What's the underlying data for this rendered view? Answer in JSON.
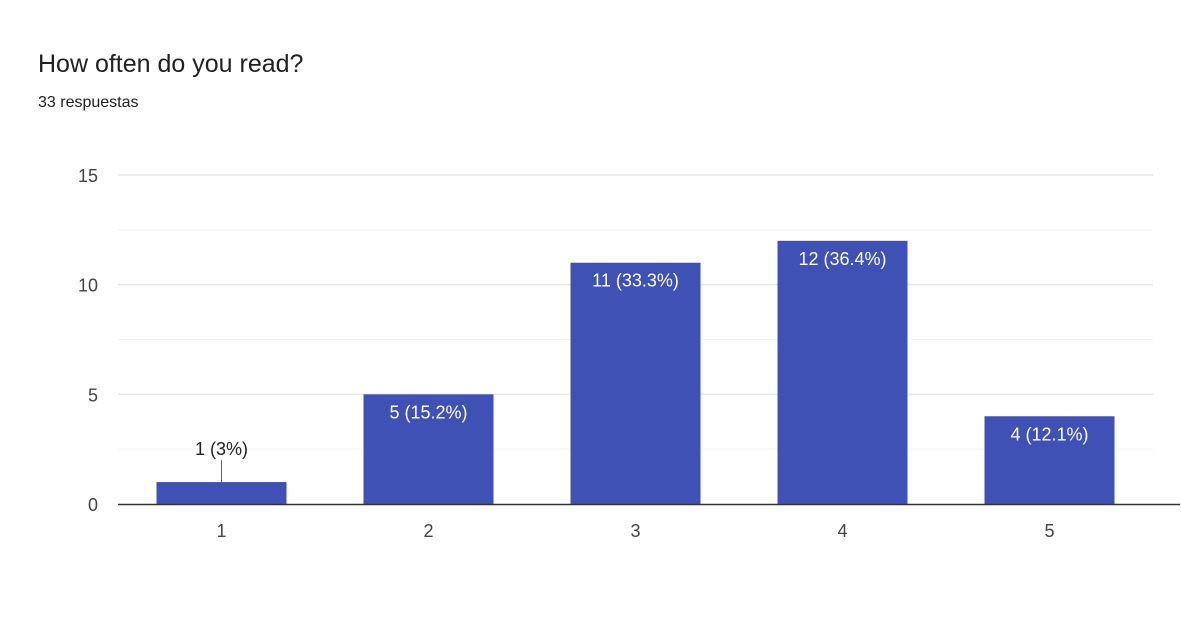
{
  "question": {
    "title": "How often do you read?",
    "responses": "33 respuestas"
  },
  "colors": {
    "bar": "#3f51b5",
    "gridline": "#ebebeb",
    "axis": "#333333",
    "label_inside": "#ffffff",
    "label_outside": "#222222"
  },
  "chart_data": {
    "type": "bar",
    "title": "",
    "xlabel": "",
    "ylabel": "",
    "categories": [
      "1",
      "2",
      "3",
      "4",
      "5"
    ],
    "values": [
      1,
      5,
      11,
      12,
      4
    ],
    "data_labels": [
      "1 (3%)",
      "5 (15.2%)",
      "11 (33.3%)",
      "12 (36.4%)",
      "4 (12.1%)"
    ],
    "ylim": [
      0,
      15
    ],
    "yticks": [
      0,
      5,
      10,
      15
    ],
    "grid": true,
    "legend": "none"
  }
}
